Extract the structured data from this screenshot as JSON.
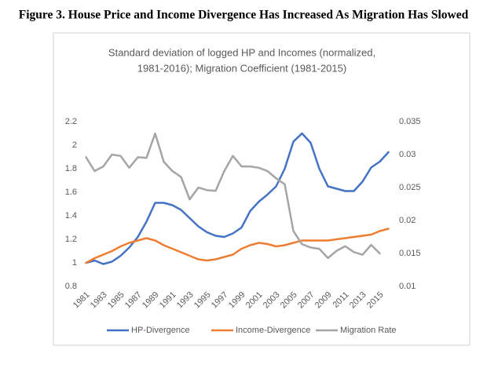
{
  "figure_title": "Figure 3. House Price and Income Divergence Has Increased As Migration Has Slowed",
  "chart_data": {
    "type": "line",
    "title_lines": [
      "Standard deviation of logged HP and Incomes (normalized,",
      "1981-2016); Migration Coefficient (1981-2015)"
    ],
    "x": [
      1981,
      1982,
      1983,
      1984,
      1985,
      1986,
      1987,
      1988,
      1989,
      1990,
      1991,
      1992,
      1993,
      1994,
      1995,
      1996,
      1997,
      1998,
      1999,
      2000,
      2001,
      2002,
      2003,
      2004,
      2005,
      2006,
      2007,
      2008,
      2009,
      2010,
      2011,
      2012,
      2013,
      2014,
      2015,
      2016
    ],
    "xlim": [
      1980.5,
      2016.5
    ],
    "xticks": [
      1981,
      1983,
      1985,
      1987,
      1989,
      1991,
      1993,
      1995,
      1997,
      1999,
      2001,
      2003,
      2005,
      2007,
      2009,
      2011,
      2013,
      2015
    ],
    "ylim": [
      0.8,
      2.2
    ],
    "yticks": [
      0.8,
      1,
      1.2,
      1.4,
      1.6,
      1.8,
      2,
      2.2
    ],
    "y2lim": [
      0.01,
      0.035
    ],
    "y2ticks": [
      0.01,
      0.015,
      0.02,
      0.025,
      0.03,
      0.035
    ],
    "legend": "bottom",
    "series": [
      {
        "name": "HP-Divergence",
        "color": "#4472c4",
        "values": [
          1.0,
          1.02,
          0.99,
          1.01,
          1.06,
          1.13,
          1.22,
          1.35,
          1.51,
          1.51,
          1.49,
          1.45,
          1.38,
          1.31,
          1.26,
          1.23,
          1.22,
          1.25,
          1.3,
          1.44,
          1.52,
          1.58,
          1.65,
          1.8,
          2.03,
          2.1,
          2.02,
          1.8,
          1.65,
          1.63,
          1.61,
          1.61,
          1.69,
          1.81,
          1.86,
          1.94
        ]
      },
      {
        "name": "Income-Divergence",
        "color": "#ed7d31",
        "values": [
          1.0,
          1.04,
          1.07,
          1.1,
          1.14,
          1.17,
          1.19,
          1.21,
          1.19,
          1.15,
          1.12,
          1.09,
          1.06,
          1.03,
          1.02,
          1.03,
          1.05,
          1.07,
          1.12,
          1.15,
          1.17,
          1.16,
          1.14,
          1.15,
          1.17,
          1.19,
          1.19,
          1.19,
          1.19,
          1.2,
          1.21,
          1.22,
          1.23,
          1.24,
          1.27,
          1.29
        ]
      },
      {
        "name": "Migration Rate",
        "color": "#a5a5a5",
        "axis": "y2",
        "values": [
          0.0296,
          0.0275,
          0.0282,
          0.03,
          0.0298,
          0.028,
          0.0296,
          0.0295,
          0.0332,
          0.0289,
          0.0275,
          0.0266,
          0.0232,
          0.025,
          0.0246,
          0.0245,
          0.0275,
          0.0298,
          0.0282,
          0.0282,
          0.028,
          0.0275,
          0.0264,
          0.0255,
          0.0184,
          0.0164,
          0.0159,
          0.0157,
          0.0143,
          0.0154,
          0.0161,
          0.0152,
          0.0148,
          0.0163,
          0.015,
          null
        ]
      }
    ]
  }
}
